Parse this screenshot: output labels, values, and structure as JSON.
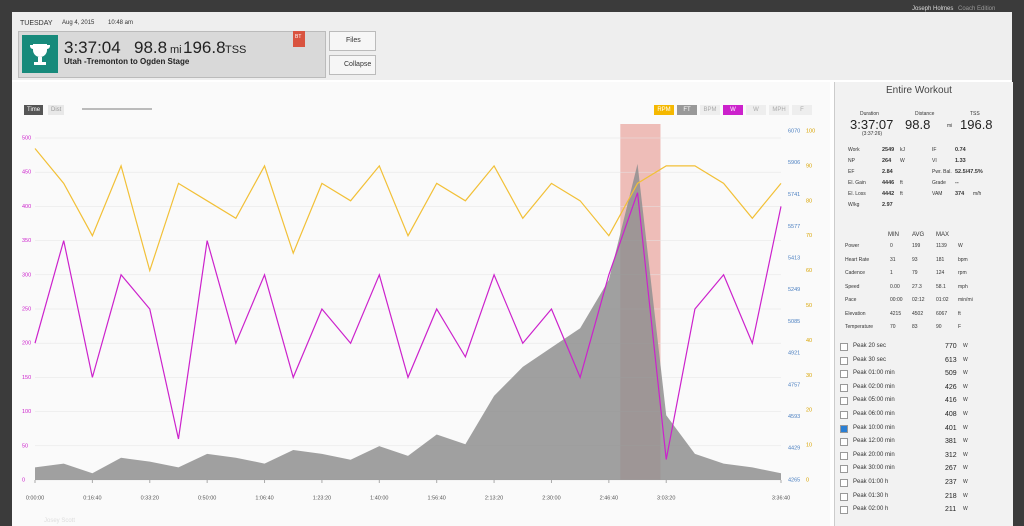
{
  "header": {
    "day": "TUESDAY",
    "date": "Aug 4, 2015",
    "time": "10:48 am",
    "duration": "3:37:04",
    "distance": "98.8",
    "distance_unit": "mi",
    "tss": "196.8",
    "tss_unit": "TSS",
    "title": "Utah -Tremonton to Ogden Stage",
    "badge": "BT",
    "files": "Files",
    "collapse": "Collapse"
  },
  "account": {
    "name": "Joseph Holmes",
    "edition": "Coach Edition"
  },
  "footer": {
    "athlete": "Josey Scott"
  },
  "toolbar": {
    "time": "Time",
    "dist": "Dist",
    "channels": [
      "RPM",
      "FT",
      "BPM",
      "W",
      "W",
      "MPH",
      "F"
    ]
  },
  "chart_data": {
    "type": "line",
    "x": [
      0,
      500,
      1000,
      1500,
      2000,
      2500,
      3000,
      3500,
      4000,
      4500,
      5000,
      5500,
      6000,
      6500,
      7000,
      7500,
      8000,
      8500,
      9000,
      9500,
      10000,
      10500,
      11000,
      11500,
      12000,
      12500,
      13000
    ],
    "xlim": [
      0,
      13000
    ],
    "xticks": [
      {
        "value": 0,
        "label": "0:00:00"
      },
      {
        "value": 1000,
        "label": "0:16:40"
      },
      {
        "value": 2000,
        "label": "0:33:20"
      },
      {
        "value": 3000,
        "label": "0:50:00"
      },
      {
        "value": 4000,
        "label": "1:06:40"
      },
      {
        "value": 5000,
        "label": "1:23:20"
      },
      {
        "value": 6000,
        "label": "1:40:00"
      },
      {
        "value": 7000,
        "label": "1:56:40"
      },
      {
        "value": 8000,
        "label": "2:13:20"
      },
      {
        "value": 9000,
        "label": "2:30:00"
      },
      {
        "value": 10000,
        "label": "2:46:40"
      },
      {
        "value": 11000,
        "label": "3:03:20"
      },
      {
        "value": 13000,
        "label": "3:36:40"
      }
    ],
    "ylim": [
      0,
      500
    ],
    "yticks": [
      0,
      50,
      100,
      150,
      200,
      250,
      300,
      350,
      400,
      450,
      500
    ],
    "y2lim": [
      4265,
      6070
    ],
    "y2ticks": [
      4265,
      4429,
      4593,
      4757,
      4921,
      5085,
      5249,
      5413,
      5577,
      5741,
      5906,
      6070
    ],
    "y3lim": [
      0,
      100
    ],
    "y3ticks": [
      0,
      10,
      20,
      30,
      40,
      50,
      60,
      70,
      80,
      90,
      100
    ],
    "selection": [
      10200,
      10900
    ],
    "series": [
      {
        "name": "Elevation",
        "color": "#8f8f8f",
        "axis": "y2",
        "values": [
          4330,
          4350,
          4300,
          4380,
          4360,
          4330,
          4400,
          4380,
          4350,
          4420,
          4400,
          4370,
          4440,
          4390,
          4500,
          4450,
          4700,
          4850,
          4950,
          5050,
          5300,
          5900,
          4600,
          4400,
          4350,
          4330,
          4300
        ]
      },
      {
        "name": "Cadence",
        "color": "#f2c037",
        "axis": "y3",
        "values": [
          95,
          85,
          70,
          90,
          60,
          85,
          80,
          75,
          90,
          65,
          85,
          80,
          90,
          70,
          85,
          80,
          90,
          75,
          85,
          80,
          70,
          85,
          90,
          90,
          85,
          75,
          85
        ]
      },
      {
        "name": "Power",
        "color": "#cc22cc",
        "axis": "y",
        "values": [
          200,
          350,
          150,
          300,
          250,
          60,
          350,
          200,
          300,
          150,
          250,
          200,
          300,
          150,
          250,
          180,
          300,
          200,
          250,
          150,
          300,
          420,
          30,
          250,
          300,
          200,
          400
        ]
      }
    ]
  },
  "panel": {
    "title": "Entire Workout",
    "summary": [
      {
        "label": "Duration",
        "value": "3:37:07",
        "sub": "(3:37:26)"
      },
      {
        "label": "Distance",
        "value": "98.8",
        "sub": "mi"
      },
      {
        "label": "TSS",
        "value": "196.8"
      }
    ],
    "metrics_left": [
      {
        "label": "Work",
        "value": "2549",
        "unit": "kJ"
      },
      {
        "label": "NP",
        "value": "264",
        "unit": "W"
      },
      {
        "label": "EF",
        "value": "2.84"
      },
      {
        "label": "El. Gain",
        "value": "4446",
        "unit": "ft"
      },
      {
        "label": "El. Loss",
        "value": "4442",
        "unit": "ft"
      },
      {
        "label": "W/kg",
        "value": "2.97"
      }
    ],
    "metrics_right": [
      {
        "label": "IF",
        "value": "0.74"
      },
      {
        "label": "VI",
        "value": "1.33"
      },
      {
        "label": "Pwr. Bal.",
        "value": "52.5/47.5%"
      },
      {
        "label": "Grade",
        "value": "--"
      },
      {
        "label": "VAM",
        "value": "374",
        "unit": "m/h"
      }
    ],
    "table": {
      "header": [
        "MIN",
        "AVG",
        "MAX"
      ],
      "rows": [
        [
          "Power",
          "0",
          "199",
          "1139",
          "W"
        ],
        [
          "Heart Rate",
          "31",
          "93",
          "181",
          "bpm"
        ],
        [
          "Cadence",
          "1",
          "79",
          "124",
          "rpm"
        ],
        [
          "Speed",
          "0.00",
          "27.3",
          "58.1",
          "mph"
        ],
        [
          "Pace",
          "00:00",
          "02:12",
          "01:02",
          "min/mi"
        ],
        [
          "Elevation",
          "4215",
          "4502",
          "6067",
          "ft"
        ],
        [
          "Temperature",
          "70",
          "83",
          "90",
          "F"
        ]
      ]
    },
    "peaks": [
      [
        "Peak 20 sec",
        "770",
        "W"
      ],
      [
        "Peak 30 sec",
        "613",
        "W"
      ],
      [
        "Peak 01:00 min",
        "509",
        "W"
      ],
      [
        "Peak 02:00 min",
        "426",
        "W"
      ],
      [
        "Peak 05:00 min",
        "416",
        "W"
      ],
      [
        "Peak 06:00 min",
        "408",
        "W"
      ],
      [
        "Peak 10:00 min",
        "401",
        "W"
      ],
      [
        "Peak 12:00 min",
        "381",
        "W"
      ],
      [
        "Peak 20:00 min",
        "312",
        "W"
      ],
      [
        "Peak 30:00 min",
        "267",
        "W"
      ],
      [
        "Peak 01:00 h",
        "237",
        "W"
      ],
      [
        "Peak 01:30 h",
        "218",
        "W"
      ],
      [
        "Peak 02:00 h",
        "211",
        "W"
      ]
    ],
    "checked_peak": 6
  }
}
